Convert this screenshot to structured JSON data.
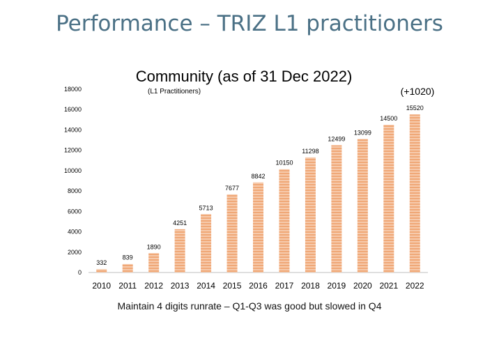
{
  "page": {
    "title": "Performance – TRIZ L1 practitioners",
    "caption": "Maintain 4 digits runrate – Q1-Q3 was good but slowed in Q4"
  },
  "colors": {
    "title": "#4a7085",
    "bar": "#f0a877",
    "bar_stripe": "#fbe2d0",
    "axis": "#bfbfbf"
  },
  "chart_data": {
    "type": "bar",
    "title": "Community (as of 31 Dec 2022)",
    "subtitle": "(L1 Practitioners)",
    "annotation": "(+1020)",
    "categories": [
      "2010",
      "2011",
      "2012",
      "2013",
      "2014",
      "2015",
      "2016",
      "2017",
      "2018",
      "2019",
      "2020",
      "2021",
      "2022"
    ],
    "values": [
      332,
      839,
      1890,
      4251,
      5713,
      7677,
      8842,
      10150,
      11298,
      12499,
      13099,
      14500,
      15520
    ],
    "ylim": [
      0,
      18000
    ],
    "yticks": [
      0,
      2000,
      4000,
      6000,
      8000,
      10000,
      12000,
      14000,
      16000,
      18000
    ],
    "grid": false,
    "legend": "none"
  }
}
